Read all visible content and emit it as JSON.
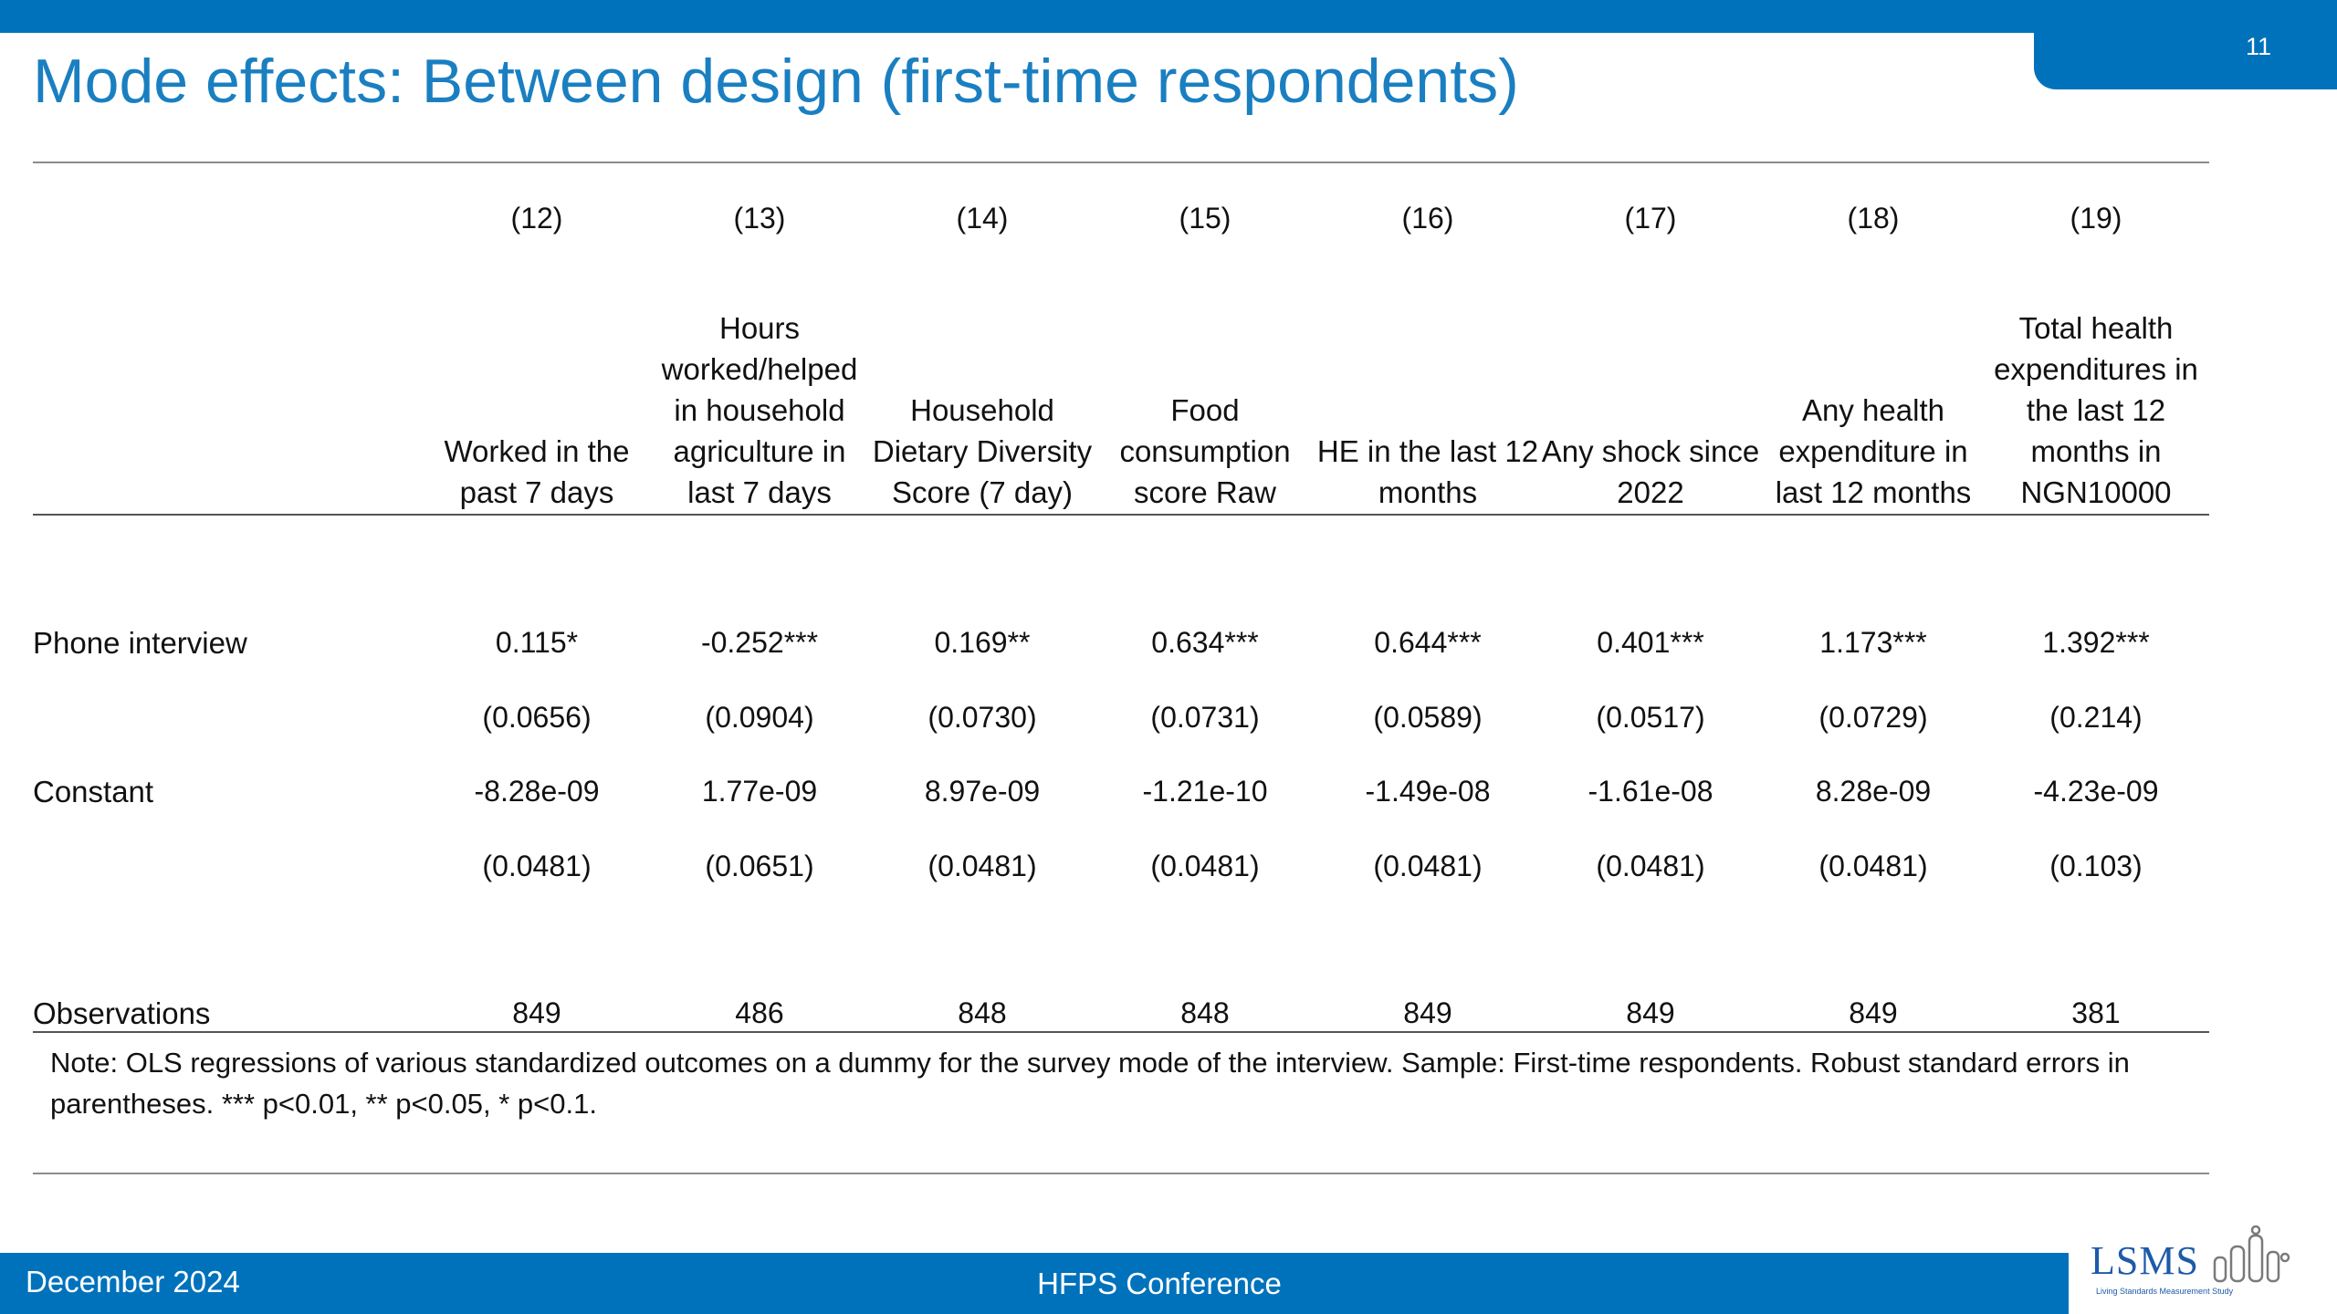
{
  "slide": {
    "title": "Mode effects: Between design (first-time respondents)",
    "page_number": "11"
  },
  "table": {
    "column_numbers": [
      "(12)",
      "(13)",
      "(14)",
      "(15)",
      "(16)",
      "(17)",
      "(18)",
      "(19)"
    ],
    "column_labels": [
      "Worked in the past 7 days",
      "Hours worked/helped in household agriculture in last 7 days",
      "Household Dietary Diversity Score (7 day)",
      "Food consumption score Raw",
      "HE in the last 12 months",
      "Any shock since 2022",
      "Any health expenditure in last 12 months",
      "Total health expenditures in the last 12 months in NGN10000"
    ],
    "rows": [
      {
        "label": "Phone interview",
        "values": [
          "0.115*",
          "-0.252***",
          "0.169**",
          "0.634***",
          "0.644***",
          "0.401***",
          "1.173***",
          "1.392***"
        ]
      },
      {
        "label": "",
        "values": [
          "(0.0656)",
          "(0.0904)",
          "(0.0730)",
          "(0.0731)",
          "(0.0589)",
          "(0.0517)",
          "(0.0729)",
          "(0.214)"
        ]
      },
      {
        "label": "Constant",
        "values": [
          "-8.28e-09",
          "1.77e-09",
          "8.97e-09",
          "-1.21e-10",
          "-1.49e-08",
          "-1.61e-08",
          "8.28e-09",
          "-4.23e-09"
        ]
      },
      {
        "label": "",
        "values": [
          "(0.0481)",
          "(0.0651)",
          "(0.0481)",
          "(0.0481)",
          "(0.0481)",
          "(0.0481)",
          "(0.0481)",
          "(0.103)"
        ]
      },
      {
        "label": "Observations",
        "values": [
          "849",
          "486",
          "848",
          "848",
          "849",
          "849",
          "849",
          "381"
        ]
      }
    ],
    "note": "Note: OLS regressions of various standardized outcomes on a dummy for the survey mode of the interview. Sample: First-time respondents. Robust standard errors in parentheses. *** p<0.01, ** p<0.05, * p<0.1."
  },
  "footer": {
    "date": "December 2024",
    "event": "HFPS Conference",
    "logo_text": "LSMS",
    "logo_subtitle": "Living Standards Measurement Study"
  },
  "colors": {
    "brand_blue": "#0072bc",
    "title_blue": "#1a7fc1"
  }
}
